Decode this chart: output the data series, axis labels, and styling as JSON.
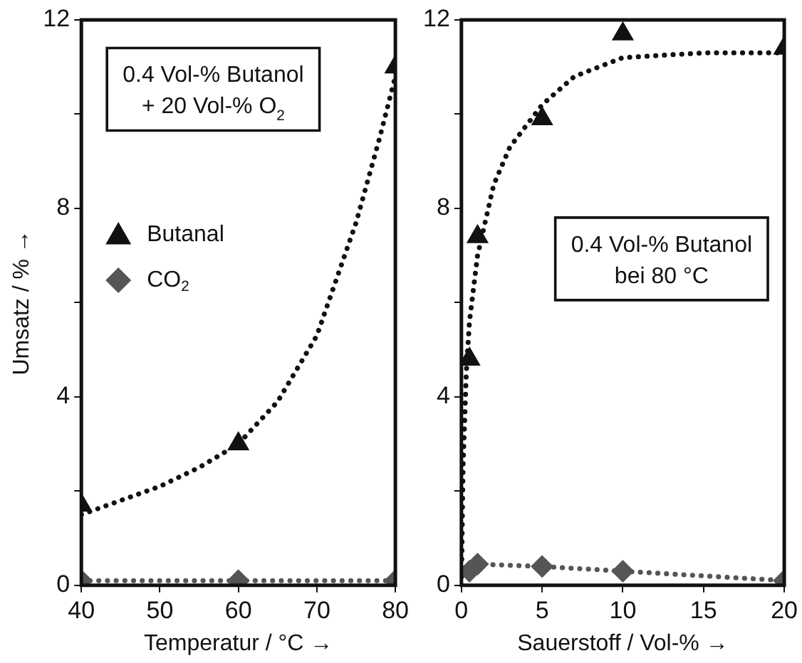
{
  "chart_data": [
    {
      "type": "scatter",
      "xlabel": "Temperatur / °C →",
      "ylabel": "Umsatz / % →",
      "xlim": [
        40,
        80
      ],
      "ylim": [
        0,
        12
      ],
      "xticks": [
        40,
        50,
        60,
        70,
        80
      ],
      "yticks": [
        0,
        {
          "value": 2,
          "label": null
        },
        4,
        {
          "value": 6,
          "label": null
        },
        8,
        {
          "value": 10,
          "label": null
        },
        12
      ],
      "grid": false,
      "legend": "left",
      "annotations": [
        "0.4 Vol-% Butanol\n+ 20 Vol-% O$_{2}$"
      ],
      "series": [
        {
          "name": "Butanal",
          "type": "scatter",
          "marker": "triangle",
          "color": "#111111",
          "x": [
            40,
            60,
            80
          ],
          "values": [
            1.7,
            3.0,
            11.0
          ]
        },
        {
          "type": "line",
          "marker": "none",
          "line_style": "dotted",
          "color": "#111111",
          "x": [
            40,
            45,
            50,
            55,
            60,
            65,
            70,
            75,
            78,
            80
          ],
          "values": [
            1.5,
            1.8,
            2.1,
            2.5,
            3.0,
            3.9,
            5.3,
            7.7,
            9.5,
            10.8
          ]
        },
        {
          "name": "CO$_{2}$",
          "type": "line",
          "marker": "diamond",
          "line_style": "dotted",
          "color": "#555555",
          "x": [
            40,
            60,
            80
          ],
          "values": [
            0.1,
            0.1,
            0.1
          ]
        }
      ]
    },
    {
      "type": "scatter",
      "xlabel": "Sauerstoff / Vol-% →",
      "xlim": [
        0,
        20
      ],
      "ylim": [
        0,
        12
      ],
      "xticks": [
        0,
        5,
        10,
        15,
        20
      ],
      "yticks": [
        0,
        {
          "value": 2,
          "label": null
        },
        4,
        {
          "value": 6,
          "label": null
        },
        8,
        {
          "value": 10,
          "label": null
        },
        12
      ],
      "grid": false,
      "annotations": [
        "0.4 Vol-% Butanol\nbei 80 °C"
      ],
      "series": [
        {
          "type": "scatter",
          "marker": "triangle",
          "color": "#111111",
          "x": [
            0.5,
            1,
            5,
            10,
            20
          ],
          "values": [
            4.8,
            7.4,
            9.9,
            11.7,
            11.4
          ]
        },
        {
          "type": "line",
          "marker": "none",
          "line_style": "dotted",
          "color": "#111111",
          "x": [
            0,
            0.1,
            0.3,
            0.5,
            1,
            2,
            3,
            5,
            7,
            10,
            15,
            20
          ],
          "values": [
            0,
            2.5,
            4.5,
            5.6,
            7.0,
            8.5,
            9.3,
            10.2,
            10.8,
            11.2,
            11.3,
            11.3
          ]
        },
        {
          "type": "line",
          "marker": "diamond",
          "line_style": "dotted",
          "color": "#555555",
          "x": [
            0.5,
            1,
            5,
            10,
            20
          ],
          "values": [
            0.3,
            0.45,
            0.4,
            0.3,
            0.1
          ]
        }
      ]
    }
  ]
}
